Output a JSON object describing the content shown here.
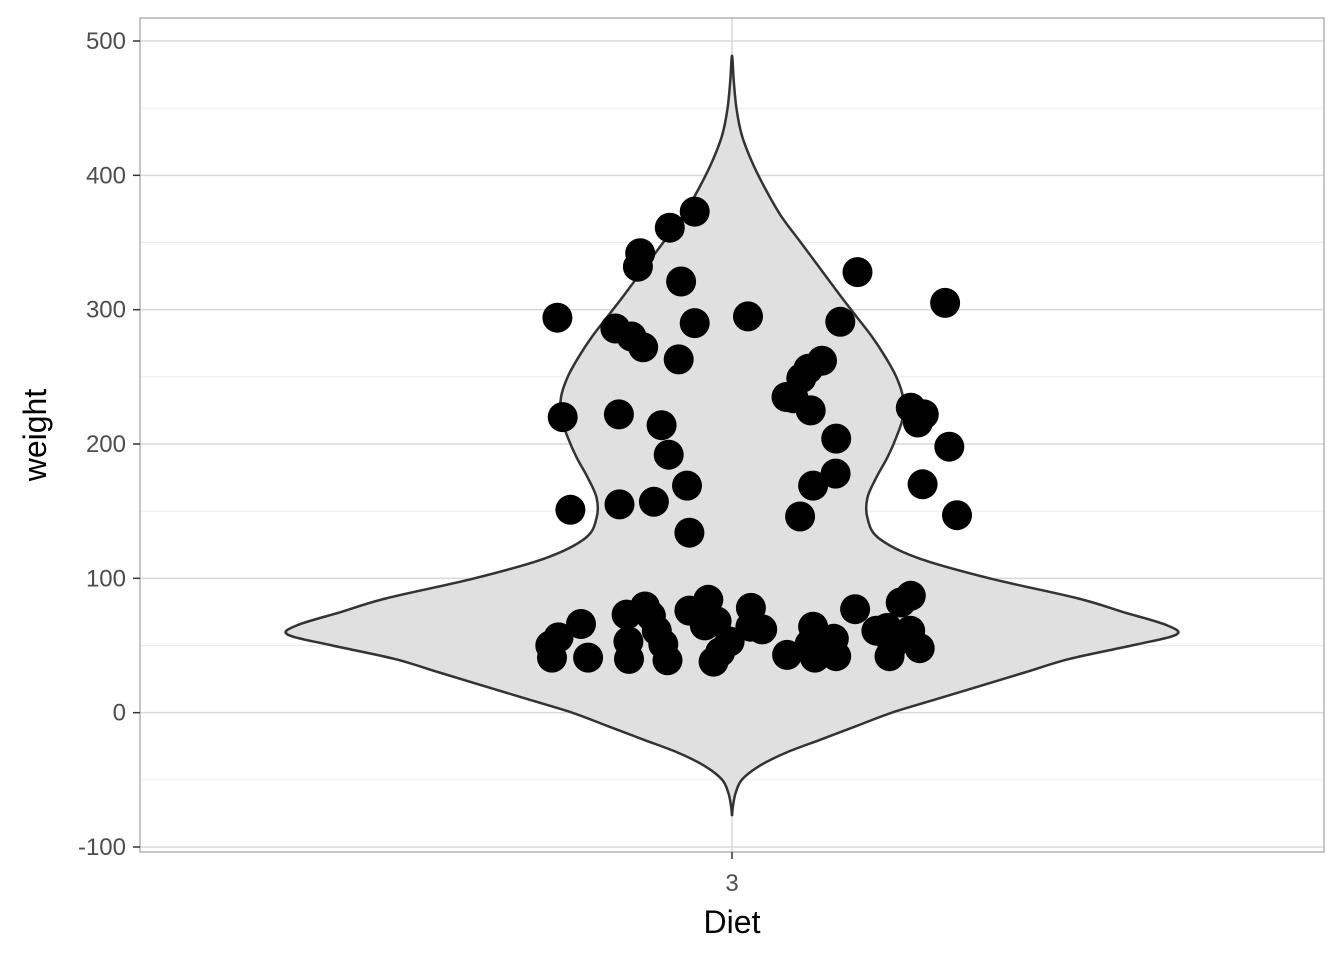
{
  "chart_data": {
    "type": "violin",
    "xlabel": "Diet",
    "ylabel": "weight",
    "categories": [
      "3"
    ],
    "ylim": [
      -100,
      500
    ],
    "y_ticks": [
      -100,
      0,
      100,
      200,
      300,
      400,
      500
    ],
    "y_tick_labels": [
      "-100",
      "0",
      "100",
      "200",
      "300",
      "400",
      "500"
    ],
    "grid": true,
    "legend": "none",
    "violin": {
      "category": "3",
      "fill": "#e0e0e0",
      "stroke": "#333333",
      "y_range": [
        -77,
        489
      ],
      "max_halfwidth_x": 0.75,
      "profile": [
        {
          "y": -77,
          "w": 0.0
        },
        {
          "y": -70,
          "w": 0.002
        },
        {
          "y": -60,
          "w": 0.008
        },
        {
          "y": -50,
          "w": 0.022
        },
        {
          "y": -40,
          "w": 0.06
        },
        {
          "y": -30,
          "w": 0.12
        },
        {
          "y": -20,
          "w": 0.2
        },
        {
          "y": -10,
          "w": 0.28
        },
        {
          "y": 0,
          "w": 0.36
        },
        {
          "y": 10,
          "w": 0.46
        },
        {
          "y": 20,
          "w": 0.56
        },
        {
          "y": 30,
          "w": 0.66
        },
        {
          "y": 40,
          "w": 0.76
        },
        {
          "y": 50,
          "w": 0.9
        },
        {
          "y": 58,
          "w": 1.0
        },
        {
          "y": 65,
          "w": 0.98
        },
        {
          "y": 75,
          "w": 0.88
        },
        {
          "y": 85,
          "w": 0.78
        },
        {
          "y": 100,
          "w": 0.58
        },
        {
          "y": 115,
          "w": 0.42
        },
        {
          "y": 130,
          "w": 0.33
        },
        {
          "y": 145,
          "w": 0.305
        },
        {
          "y": 160,
          "w": 0.305
        },
        {
          "y": 175,
          "w": 0.325
        },
        {
          "y": 190,
          "w": 0.35
        },
        {
          "y": 205,
          "w": 0.37
        },
        {
          "y": 220,
          "w": 0.385
        },
        {
          "y": 235,
          "w": 0.385
        },
        {
          "y": 250,
          "w": 0.37
        },
        {
          "y": 265,
          "w": 0.345
        },
        {
          "y": 280,
          "w": 0.315
        },
        {
          "y": 295,
          "w": 0.28
        },
        {
          "y": 310,
          "w": 0.245
        },
        {
          "y": 330,
          "w": 0.2
        },
        {
          "y": 350,
          "w": 0.155
        },
        {
          "y": 370,
          "w": 0.11
        },
        {
          "y": 390,
          "w": 0.075
        },
        {
          "y": 410,
          "w": 0.045
        },
        {
          "y": 430,
          "w": 0.022
        },
        {
          "y": 450,
          "w": 0.01
        },
        {
          "y": 470,
          "w": 0.004
        },
        {
          "y": 489,
          "w": 0.0
        }
      ]
    },
    "points": [
      {
        "x": 2.705,
        "y": 294
      },
      {
        "x": 2.803,
        "y": 286
      },
      {
        "x": 2.83,
        "y": 280
      },
      {
        "x": 2.85,
        "y": 272
      },
      {
        "x": 2.895,
        "y": 361
      },
      {
        "x": 2.937,
        "y": 373
      },
      {
        "x": 2.841,
        "y": 332
      },
      {
        "x": 2.845,
        "y": 342
      },
      {
        "x": 2.914,
        "y": 321
      },
      {
        "x": 2.937,
        "y": 290
      },
      {
        "x": 2.91,
        "y": 263
      },
      {
        "x": 2.809,
        "y": 222
      },
      {
        "x": 2.714,
        "y": 220
      },
      {
        "x": 2.881,
        "y": 214
      },
      {
        "x": 2.893,
        "y": 192
      },
      {
        "x": 2.924,
        "y": 169
      },
      {
        "x": 2.727,
        "y": 151
      },
      {
        "x": 2.81,
        "y": 155
      },
      {
        "x": 2.868,
        "y": 157
      },
      {
        "x": 2.928,
        "y": 134
      },
      {
        "x": 3.027,
        "y": 295
      },
      {
        "x": 3.212,
        "y": 328
      },
      {
        "x": 3.36,
        "y": 305
      },
      {
        "x": 3.183,
        "y": 291
      },
      {
        "x": 3.152,
        "y": 262
      },
      {
        "x": 3.129,
        "y": 256
      },
      {
        "x": 3.117,
        "y": 249
      },
      {
        "x": 3.092,
        "y": 235
      },
      {
        "x": 3.104,
        "y": 234
      },
      {
        "x": 3.133,
        "y": 225
      },
      {
        "x": 3.302,
        "y": 227
      },
      {
        "x": 3.314,
        "y": 216
      },
      {
        "x": 3.324,
        "y": 222
      },
      {
        "x": 3.176,
        "y": 204
      },
      {
        "x": 3.175,
        "y": 178
      },
      {
        "x": 3.367,
        "y": 198
      },
      {
        "x": 3.137,
        "y": 169
      },
      {
        "x": 3.115,
        "y": 146
      },
      {
        "x": 3.322,
        "y": 170
      },
      {
        "x": 3.38,
        "y": 147
      },
      {
        "x": 2.693,
        "y": 50
      },
      {
        "x": 2.696,
        "y": 41
      },
      {
        "x": 2.707,
        "y": 56
      },
      {
        "x": 2.745,
        "y": 66
      },
      {
        "x": 2.757,
        "y": 41
      },
      {
        "x": 2.822,
        "y": 73
      },
      {
        "x": 2.825,
        "y": 53
      },
      {
        "x": 2.826,
        "y": 40
      },
      {
        "x": 2.853,
        "y": 79
      },
      {
        "x": 2.863,
        "y": 72
      },
      {
        "x": 2.873,
        "y": 61
      },
      {
        "x": 2.884,
        "y": 51
      },
      {
        "x": 2.891,
        "y": 39
      },
      {
        "x": 2.928,
        "y": 76
      },
      {
        "x": 2.96,
        "y": 84
      },
      {
        "x": 2.954,
        "y": 65
      },
      {
        "x": 2.974,
        "y": 68
      },
      {
        "x": 2.969,
        "y": 38
      },
      {
        "x": 2.98,
        "y": 45
      },
      {
        "x": 2.996,
        "y": 53
      },
      {
        "x": 3.032,
        "y": 78
      },
      {
        "x": 3.031,
        "y": 64
      },
      {
        "x": 3.051,
        "y": 62
      },
      {
        "x": 3.093,
        "y": 43
      },
      {
        "x": 3.131,
        "y": 51
      },
      {
        "x": 3.137,
        "y": 64
      },
      {
        "x": 3.14,
        "y": 41
      },
      {
        "x": 3.172,
        "y": 55
      },
      {
        "x": 3.176,
        "y": 42
      },
      {
        "x": 3.208,
        "y": 77
      },
      {
        "x": 3.244,
        "y": 61
      },
      {
        "x": 3.262,
        "y": 63
      },
      {
        "x": 3.266,
        "y": 42
      },
      {
        "x": 3.271,
        "y": 50
      },
      {
        "x": 3.285,
        "y": 82
      },
      {
        "x": 3.302,
        "y": 87
      },
      {
        "x": 3.301,
        "y": 61
      },
      {
        "x": 3.317,
        "y": 48
      }
    ],
    "point_color": "#000000"
  }
}
